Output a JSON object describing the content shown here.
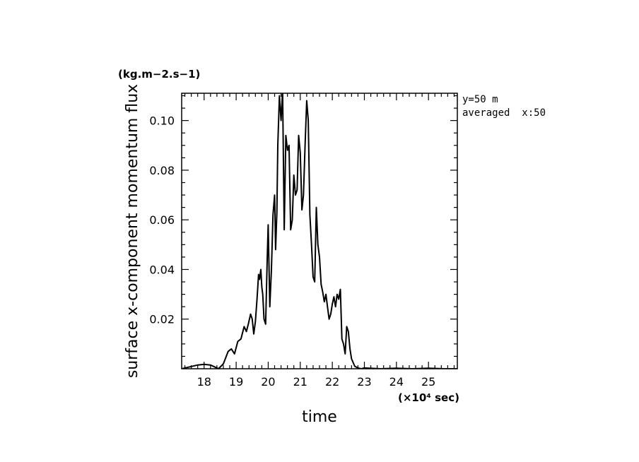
{
  "chart_data": {
    "type": "line",
    "title": "",
    "xlabel": "time",
    "x_unit_label": "(×10⁴ sec)",
    "ylabel": "surface x-component momentum flux",
    "y_unit_label": "(kg.m−2.s−1)",
    "annotations": [
      "y=50 m",
      "averaged  x:50"
    ],
    "xlim": [
      17.3,
      25.9
    ],
    "ylim": [
      0.0,
      0.111
    ],
    "x_ticks": [
      18,
      19,
      20,
      21,
      22,
      23,
      24,
      25
    ],
    "x_tick_labels": [
      "18",
      "19",
      "20",
      "21",
      "22",
      "23",
      "24",
      "25"
    ],
    "y_ticks": [
      0.02,
      0.04,
      0.06,
      0.08,
      0.1
    ],
    "y_tick_labels": [
      "0.02",
      "0.04",
      "0.06",
      "0.08",
      "0.10"
    ],
    "grid": false,
    "series": [
      {
        "color": "#000000",
        "x": [
          17.3,
          17.8,
          18.0,
          18.2,
          18.45,
          18.6,
          18.75,
          18.85,
          18.95,
          19.05,
          19.15,
          19.25,
          19.32,
          19.38,
          19.45,
          19.5,
          19.55,
          19.6,
          19.65,
          19.7,
          19.73,
          19.77,
          19.8,
          19.83,
          19.87,
          19.92,
          19.97,
          20.0,
          20.05,
          20.1,
          20.15,
          20.2,
          20.23,
          20.27,
          20.3,
          20.35,
          20.4,
          20.45,
          20.5,
          20.55,
          20.6,
          20.65,
          20.7,
          20.75,
          20.8,
          20.85,
          20.9,
          20.95,
          21.0,
          21.05,
          21.1,
          21.15,
          21.2,
          21.25,
          21.3,
          21.35,
          21.4,
          21.45,
          21.5,
          21.55,
          21.6,
          21.65,
          21.7,
          21.75,
          21.8,
          21.85,
          21.9,
          21.95,
          22.0,
          22.05,
          22.1,
          22.15,
          22.2,
          22.25,
          22.3,
          22.35,
          22.4,
          22.45,
          22.5,
          22.55,
          22.6,
          22.7,
          22.8,
          22.9,
          23.0,
          23.5,
          24.0,
          24.5,
          25.0,
          25.5,
          25.9
        ],
        "y": [
          0.0,
          0.0015,
          0.0018,
          0.0015,
          0.0,
          0.002,
          0.007,
          0.008,
          0.006,
          0.011,
          0.012,
          0.017,
          0.015,
          0.018,
          0.022,
          0.02,
          0.014,
          0.019,
          0.028,
          0.038,
          0.036,
          0.04,
          0.033,
          0.03,
          0.02,
          0.018,
          0.045,
          0.058,
          0.025,
          0.04,
          0.062,
          0.07,
          0.048,
          0.063,
          0.09,
          0.11,
          0.1,
          0.112,
          0.056,
          0.094,
          0.088,
          0.09,
          0.056,
          0.06,
          0.078,
          0.07,
          0.072,
          0.094,
          0.087,
          0.064,
          0.07,
          0.09,
          0.108,
          0.1,
          0.062,
          0.05,
          0.037,
          0.035,
          0.065,
          0.05,
          0.045,
          0.034,
          0.031,
          0.027,
          0.03,
          0.025,
          0.02,
          0.022,
          0.026,
          0.029,
          0.025,
          0.03,
          0.028,
          0.032,
          0.012,
          0.01,
          0.006,
          0.017,
          0.015,
          0.008,
          0.004,
          0.001,
          0.0003,
          0.0,
          0.0003,
          0.0,
          0.0002,
          0.0,
          0.0002,
          0.0,
          0.0
        ]
      }
    ]
  }
}
